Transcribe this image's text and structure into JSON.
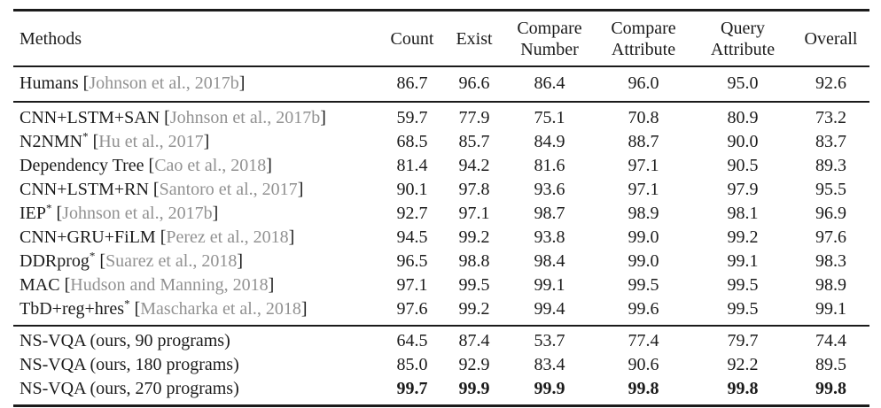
{
  "colors": {
    "text": "#1b1b1b",
    "citation_gray": "#919191",
    "rule": "#1b1b1b",
    "background": "#ffffff"
  },
  "table": {
    "columns": [
      "Methods",
      "Count",
      "Exist",
      "Compare\nNumber",
      "Compare\nAttribute",
      "Query\nAttribute",
      "Overall"
    ],
    "groups": [
      {
        "rows": [
          {
            "name": "Humans",
            "bracket_open": "[",
            "cite": "Johnson et al., 2017b",
            "bracket_close": "]",
            "values": [
              "86.7",
              "96.6",
              "86.4",
              "96.0",
              "95.0",
              "92.6"
            ]
          }
        ]
      },
      {
        "rows": [
          {
            "name": "CNN+LSTM+SAN",
            "bracket_open": "[",
            "cite": "Johnson et al., 2017b",
            "bracket_close": "]",
            "values": [
              "59.7",
              "77.9",
              "75.1",
              "70.8",
              "80.9",
              "73.2"
            ]
          },
          {
            "name": "N2NMN",
            "sup": "*",
            "bracket_open": "[",
            "cite": "Hu et al., 2017",
            "bracket_close": "]",
            "values": [
              "68.5",
              "85.7",
              "84.9",
              "88.7",
              "90.0",
              "83.7"
            ]
          },
          {
            "name": "Dependency Tree",
            "bracket_open": "[",
            "cite": "Cao et al., 2018",
            "bracket_close": "]",
            "values": [
              "81.4",
              "94.2",
              "81.6",
              "97.1",
              "90.5",
              "89.3"
            ]
          },
          {
            "name": "CNN+LSTM+RN",
            "bracket_open": "[",
            "cite": "Santoro et al., 2017",
            "bracket_close": "]",
            "values": [
              "90.1",
              "97.8",
              "93.6",
              "97.1",
              "97.9",
              "95.5"
            ]
          },
          {
            "name": "IEP",
            "sup": "*",
            "bracket_open": "[",
            "cite": "Johnson et al., 2017b",
            "bracket_close": "]",
            "values": [
              "92.7",
              "97.1",
              "98.7",
              "98.9",
              "98.1",
              "96.9"
            ]
          },
          {
            "name": "CNN+GRU+FiLM",
            "bracket_open": "[",
            "cite": "Perez et al., 2018",
            "bracket_close": "]",
            "values": [
              "94.5",
              "99.2",
              "93.8",
              "99.0",
              "99.2",
              "97.6"
            ]
          },
          {
            "name": "DDRprog",
            "sup": "*",
            "bracket_open": "[",
            "cite": "Suarez et al., 2018",
            "bracket_close": "]",
            "values": [
              "96.5",
              "98.8",
              "98.4",
              "99.0",
              "99.1",
              "98.3"
            ]
          },
          {
            "name": "MAC",
            "bracket_open": "[",
            "cite": "Hudson and Manning, 2018",
            "bracket_close": "]",
            "values": [
              "97.1",
              "99.5",
              "99.1",
              "99.5",
              "99.5",
              "98.9"
            ]
          },
          {
            "name": "TbD+reg+hres",
            "sup": "*",
            "bracket_open": "[",
            "cite": "Mascharka et al., 2018",
            "bracket_close": "]",
            "values": [
              "97.6",
              "99.2",
              "99.4",
              "99.6",
              "99.5",
              "99.1"
            ]
          }
        ]
      },
      {
        "rows": [
          {
            "name": "NS-VQA (ours, 90 programs)",
            "values": [
              "64.5",
              "87.4",
              "53.7",
              "77.4",
              "79.7",
              "74.4"
            ]
          },
          {
            "name": "NS-VQA (ours, 180 programs)",
            "values": [
              "85.0",
              "92.9",
              "83.4",
              "90.6",
              "92.2",
              "89.5"
            ]
          },
          {
            "name": "NS-VQA (ours, 270 programs)",
            "values": [
              "99.7",
              "99.9",
              "99.9",
              "99.8",
              "99.8",
              "99.8"
            ]
          }
        ]
      }
    ]
  }
}
